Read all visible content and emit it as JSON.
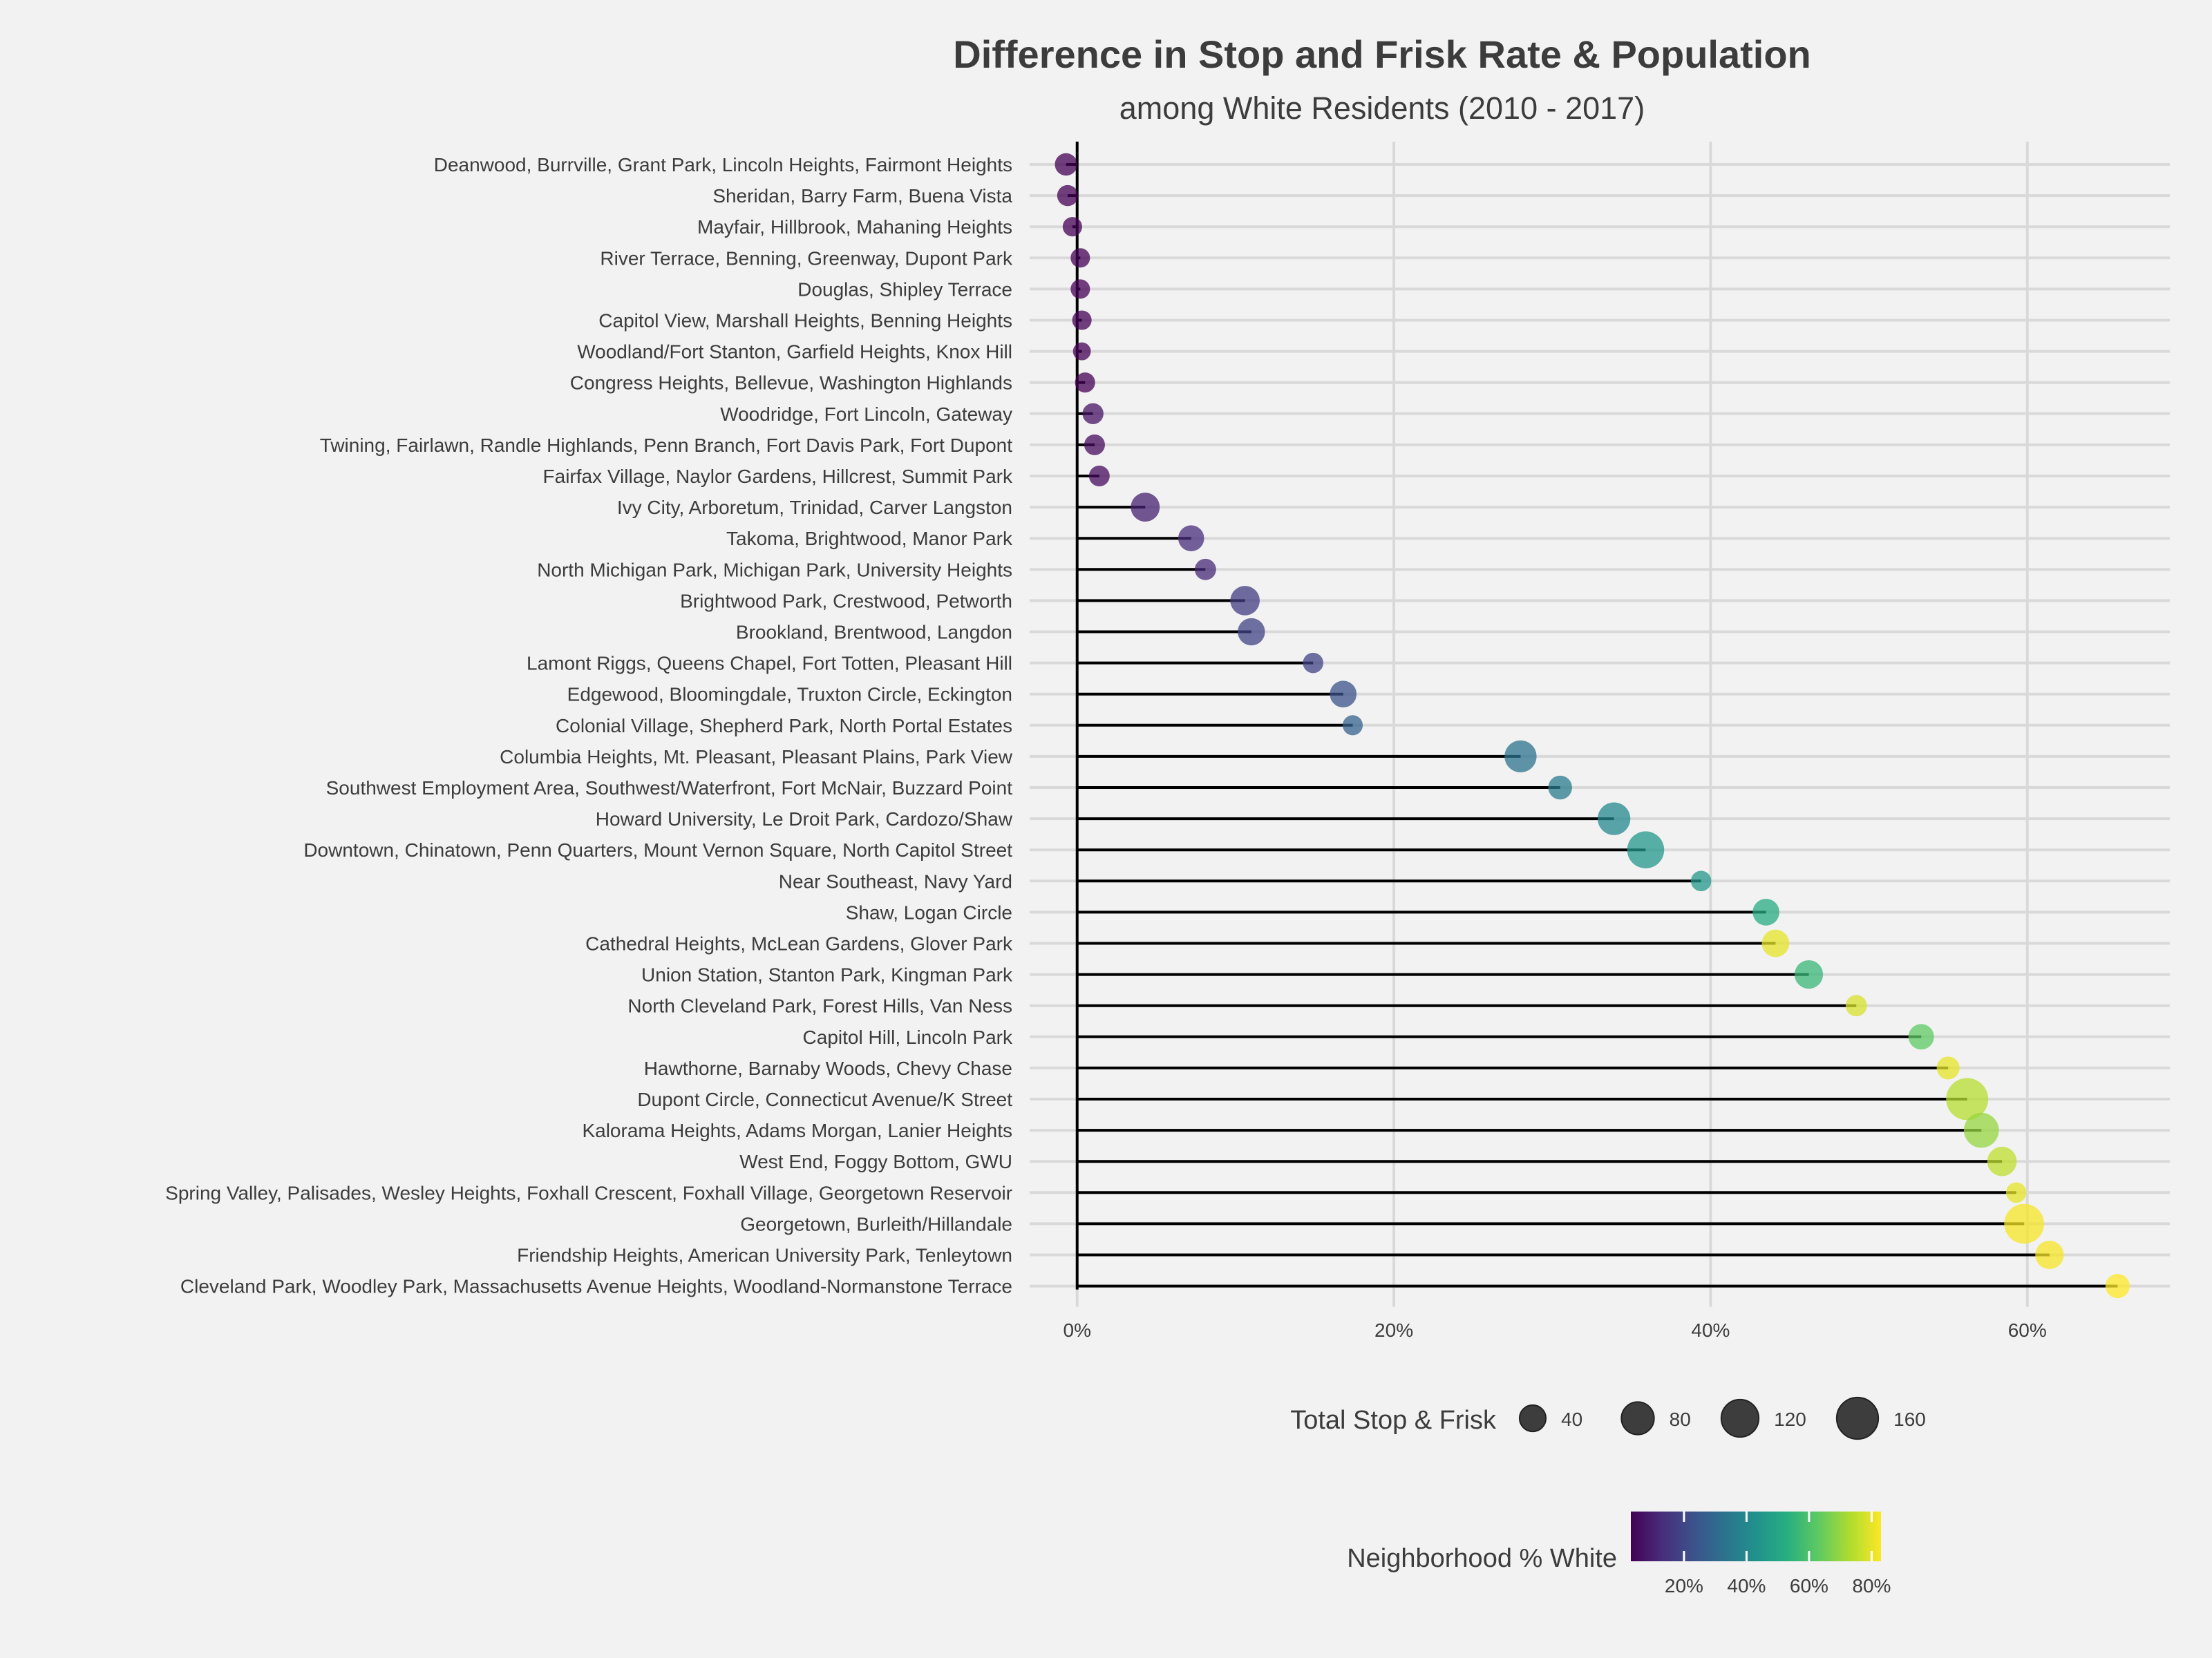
{
  "chart_data": {
    "type": "lollipop",
    "title": "Difference in Stop and Frisk Rate & Population",
    "subtitle": "among White Residents (2010 - 2017)",
    "xlabel": "",
    "ylabel": "",
    "xlim": [
      -3,
      69
    ],
    "x_ticks": [
      0,
      20,
      40,
      60
    ],
    "x_tick_labels": [
      "0%",
      "20%",
      "40%",
      "60%"
    ],
    "grid": true,
    "rows": [
      {
        "label": "Deanwood, Burrville, Grant Park, Lincoln Heights, Fairmont Heights",
        "value": -0.7,
        "total": 22,
        "pct_white": 3
      },
      {
        "label": "Sheridan, Barry Farm, Buena Vista",
        "value": -0.6,
        "total": 17,
        "pct_white": 3
      },
      {
        "label": "Mayfair, Hillbrook, Mahaning Heights",
        "value": -0.3,
        "total": 12,
        "pct_white": 3
      },
      {
        "label": "River Terrace, Benning, Greenway, Dupont Park",
        "value": 0.2,
        "total": 12,
        "pct_white": 3
      },
      {
        "label": "Douglas, Shipley Terrace",
        "value": 0.2,
        "total": 12,
        "pct_white": 3
      },
      {
        "label": "Capitol View, Marshall Heights, Benning Heights",
        "value": 0.3,
        "total": 12,
        "pct_white": 3
      },
      {
        "label": "Woodland/Fort Stanton, Garfield Heights, Knox Hill",
        "value": 0.3,
        "total": 8,
        "pct_white": 3
      },
      {
        "label": "Congress Heights, Bellevue, Washington Highlands",
        "value": 0.5,
        "total": 14,
        "pct_white": 3
      },
      {
        "label": "Woodridge, Fort Lincoln, Gateway",
        "value": 1.0,
        "total": 17,
        "pct_white": 7
      },
      {
        "label": "Twining, Fairlawn, Randle Highlands, Penn Branch, Fort Davis Park, Fort Dupont",
        "value": 1.1,
        "total": 16,
        "pct_white": 5
      },
      {
        "label": "Fairfax Village, Naylor Gardens, Hillcrest, Summit Park",
        "value": 1.4,
        "total": 16,
        "pct_white": 5
      },
      {
        "label": "Ivy City, Arboretum, Trinidad, Carver Langston",
        "value": 4.3,
        "total": 55,
        "pct_white": 10
      },
      {
        "label": "Takoma, Brightwood, Manor Park",
        "value": 7.2,
        "total": 38,
        "pct_white": 13
      },
      {
        "label": "North Michigan Park, Michigan Park, University Heights",
        "value": 8.1,
        "total": 18,
        "pct_white": 12
      },
      {
        "label": "Brightwood Park, Crestwood, Petworth",
        "value": 10.6,
        "total": 58,
        "pct_white": 17
      },
      {
        "label": "Brookland, Brentwood, Langdon",
        "value": 11.0,
        "total": 45,
        "pct_white": 19
      },
      {
        "label": "Lamont Riggs, Queens Chapel, Fort Totten, Pleasant Hill",
        "value": 14.9,
        "total": 15,
        "pct_white": 19
      },
      {
        "label": "Edgewood, Bloomingdale, Truxton Circle, Eckington",
        "value": 16.8,
        "total": 42,
        "pct_white": 23
      },
      {
        "label": "Colonial Village, Shepherd Park, North Portal Estates",
        "value": 17.4,
        "total": 14,
        "pct_white": 28
      },
      {
        "label": "Columbia Heights, Mt. Pleasant, Pleasant Plains, Park View",
        "value": 28.0,
        "total": 75,
        "pct_white": 33
      },
      {
        "label": "Southwest Employment Area, Southwest/Waterfront, Fort McNair, Buzzard Point",
        "value": 30.5,
        "total": 28,
        "pct_white": 36
      },
      {
        "label": "Howard University, Le Droit Park, Cardozo/Shaw",
        "value": 33.9,
        "total": 80,
        "pct_white": 40
      },
      {
        "label": "Downtown, Chinatown, Penn Quarters, Mount Vernon Square, North Capitol Street",
        "value": 35.9,
        "total": 115,
        "pct_white": 45
      },
      {
        "label": "Near Southeast, Navy Yard",
        "value": 39.4,
        "total": 15,
        "pct_white": 45
      },
      {
        "label": "Shaw, Logan Circle",
        "value": 43.5,
        "total": 42,
        "pct_white": 52
      },
      {
        "label": "Cathedral Heights, McLean Gardens, Glover Park",
        "value": 44.1,
        "total": 46,
        "pct_white": 80
      },
      {
        "label": "Union Station, Stanton Park, Kingman Park",
        "value": 46.2,
        "total": 52,
        "pct_white": 56
      },
      {
        "label": "North Cleveland Park, Forest Hills, Van Ness",
        "value": 49.2,
        "total": 18,
        "pct_white": 78
      },
      {
        "label": "Capitol Hill, Lincoln Park",
        "value": 53.3,
        "total": 36,
        "pct_white": 63
      },
      {
        "label": "Hawthorne, Barnaby Woods, Chevy Chase",
        "value": 55.0,
        "total": 24,
        "pct_white": 80
      },
      {
        "label": "Dupont Circle, Connecticut Avenue/K Street",
        "value": 56.2,
        "total": 165,
        "pct_white": 74
      },
      {
        "label": "Kalorama Heights, Adams Morgan, Lanier Heights",
        "value": 57.1,
        "total": 98,
        "pct_white": 70
      },
      {
        "label": "West End, Foggy Bottom, GWU",
        "value": 58.4,
        "total": 58,
        "pct_white": 75
      },
      {
        "label": "Spring Valley, Palisades, Wesley Heights, Foxhall Crescent, Foxhall Village, Georgetown Reservoir",
        "value": 59.3,
        "total": 15,
        "pct_white": 80
      },
      {
        "label": "Georgetown, Burleith/Hillandale",
        "value": 59.8,
        "total": 142,
        "pct_white": 82
      },
      {
        "label": "Friendship Heights, American University Park, Tenleytown",
        "value": 61.4,
        "total": 52,
        "pct_white": 82
      },
      {
        "label": "Cleveland Park, Woodley Park, Massachusetts Avenue Heights, Woodland-Normanstone Terrace",
        "value": 65.7,
        "total": 30,
        "pct_white": 83
      }
    ],
    "size_legend": {
      "title": "Total Stop & Frisk",
      "values": [
        40,
        80,
        120,
        160
      ],
      "labels": [
        "40",
        "80",
        "120",
        "160"
      ]
    },
    "color_legend": {
      "title": "Neighborhood % White",
      "range": [
        3,
        83
      ],
      "ticks": [
        20,
        40,
        60,
        80
      ],
      "tick_labels": [
        "20%",
        "40%",
        "60%",
        "80%"
      ],
      "palette": [
        "#440154",
        "#472d7b",
        "#3b528b",
        "#2c728e",
        "#21918c",
        "#28ae80",
        "#5ec962",
        "#addc30",
        "#fde725"
      ]
    }
  }
}
